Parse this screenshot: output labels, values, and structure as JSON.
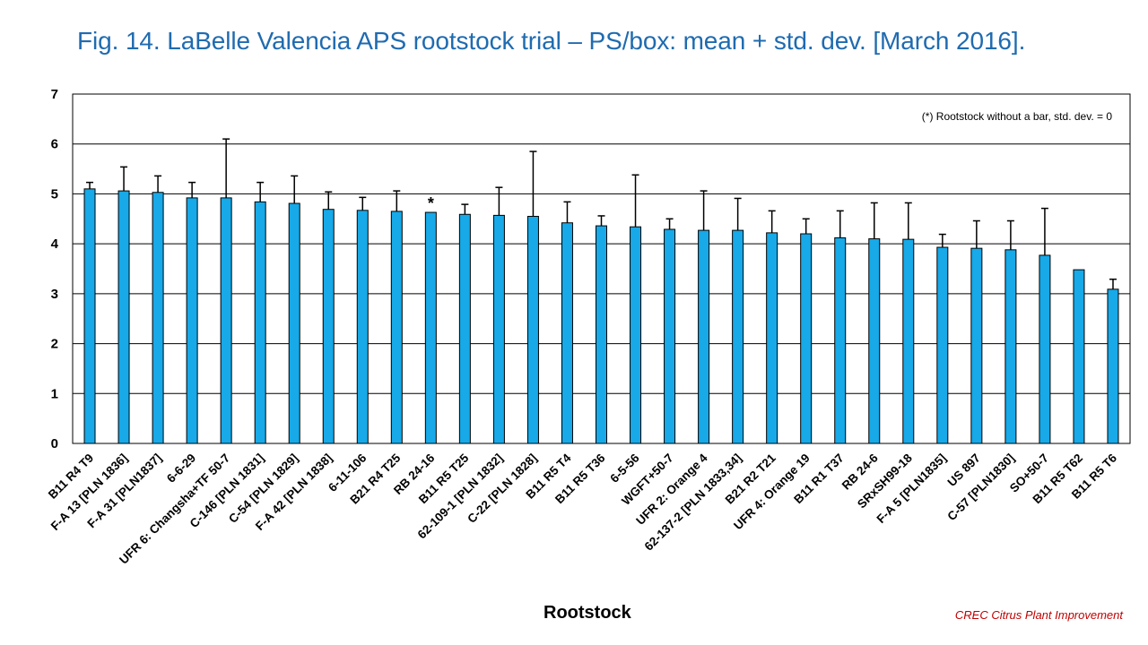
{
  "title": "Fig. 14. LaBelle Valencia APS rootstock trial – PS/box: mean + std. dev. [March 2016].",
  "credit": "CREC Citrus Plant Improvement",
  "colors": {
    "bar": "#17a9e8",
    "bar_stroke": "#000000",
    "title": "#1f6bb0",
    "credit": "#c00000",
    "grid": "#000000"
  },
  "chart_data": {
    "type": "bar",
    "title": "Fig. 14. LaBelle Valencia APS rootstock trial – PS/box: mean + std. dev. [March 2016].",
    "xlabel": "Rootstock",
    "ylabel": "",
    "ylim": [
      0,
      7
    ],
    "yticks": [
      "0",
      "1",
      "2",
      "3",
      "4",
      "5",
      "6",
      "7"
    ],
    "grid": true,
    "annotation": "(*) Rootstock without a bar, std. dev. = 0",
    "marker_text": "*",
    "categories": [
      "B11 R4 T9",
      "F-A 13 [PLN 1836]",
      "F-A 31 [PLN1837]",
      "6-6-29",
      "UFR 6: Changsha+TF 50-7",
      "C-146 [PLN 1831]",
      "C-54 [PLN 1829]",
      "F-A 42 [PLN 1838]",
      "6-11-106",
      "B21 R4 T25",
      "RB 24-16",
      "B11 R5 T25",
      "62-109-1 [PLN 1832]",
      "C-22 [PLN 1828]",
      "B11 R5 T4",
      "B11 R5 T36",
      "6-5-56",
      "WGFT+50-7",
      "UFR 2: Orange 4",
      "62-137-2 [PLN 1833,34]",
      "B21 R2 T21",
      "UFR 4: Orange 19",
      "B11 R1 T37",
      "RB 24-6",
      "SRxSH99-18",
      "F-A 5 [PLN1835]",
      "US 897",
      "C-57 [PLN1830]",
      "SO+50-7",
      "B11 R5 T62",
      "B11 R5 T6"
    ],
    "values": [
      5.1,
      5.06,
      5.03,
      4.92,
      4.92,
      4.84,
      4.81,
      4.69,
      4.67,
      4.65,
      4.63,
      4.59,
      4.57,
      4.55,
      4.42,
      4.36,
      4.34,
      4.29,
      4.27,
      4.27,
      4.22,
      4.2,
      4.12,
      4.1,
      4.09,
      3.93,
      3.91,
      3.88,
      3.77,
      3.48,
      3.09
    ],
    "std_dev": [
      0.13,
      0.48,
      0.33,
      0.31,
      1.18,
      0.39,
      0.55,
      0.35,
      0.26,
      0.41,
      0.0,
      0.2,
      0.56,
      1.3,
      0.42,
      0.2,
      1.04,
      0.21,
      0.79,
      0.64,
      0.44,
      0.3,
      0.54,
      0.72,
      0.73,
      0.26,
      0.55,
      0.58,
      0.94,
      0.0,
      0.2
    ],
    "marked_categories": [
      "RB 24-16"
    ]
  }
}
